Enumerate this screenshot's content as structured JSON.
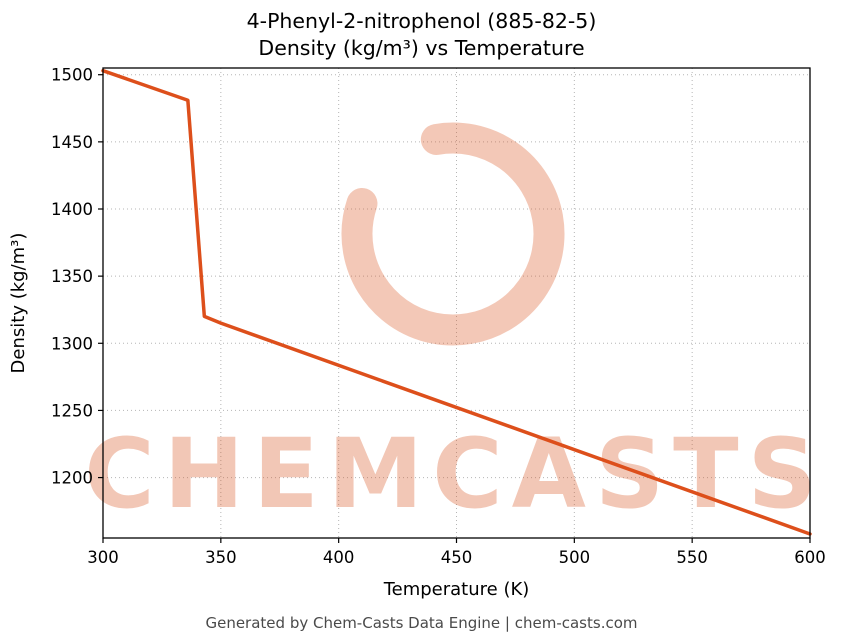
{
  "title": {
    "line1": "4-Phenyl-2-nitrophenol (885-82-5)",
    "line2": "Density (kg/m³) vs Temperature"
  },
  "footer": {
    "text": "Generated by Chem-Casts Data Engine | chem-casts.com"
  },
  "watermark": {
    "text": "CHEMCASTS",
    "color": "#d9531e",
    "opacity": 0.32
  },
  "chart_data": {
    "type": "line",
    "title": "4-Phenyl-2-nitrophenol (885-82-5) Density (kg/m³) vs Temperature",
    "xlabel": "Temperature (K)",
    "ylabel": "Density (kg/m³)",
    "xlim": [
      300,
      600
    ],
    "ylim": [
      1155,
      1505
    ],
    "x_ticks": [
      300,
      350,
      400,
      450,
      500,
      550,
      600
    ],
    "y_ticks": [
      1200,
      1250,
      1300,
      1350,
      1400,
      1450,
      1500
    ],
    "grid": true,
    "legend": false,
    "line_color": "#dd4f1b",
    "series": [
      {
        "name": "Density",
        "points": [
          [
            300,
            1503
          ],
          [
            336,
            1481
          ],
          [
            343,
            1320
          ],
          [
            350,
            1315
          ],
          [
            600,
            1158
          ]
        ]
      }
    ]
  }
}
